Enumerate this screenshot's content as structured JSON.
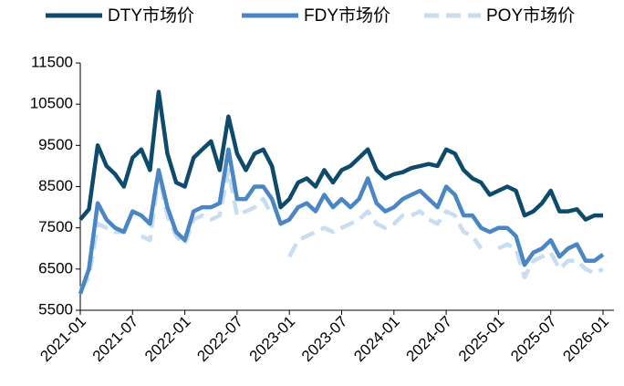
{
  "chart_data": {
    "type": "line",
    "x": [
      "2021-01",
      "2021-02",
      "2021-03",
      "2021-04",
      "2021-05",
      "2021-06",
      "2021-07",
      "2021-08",
      "2021-09",
      "2021-10",
      "2021-11",
      "2021-12",
      "2022-01",
      "2022-02",
      "2022-03",
      "2022-04",
      "2022-05",
      "2022-06",
      "2022-07",
      "2022-08",
      "2022-09",
      "2022-10",
      "2022-11",
      "2022-12",
      "2023-01",
      "2023-02",
      "2023-03",
      "2023-04",
      "2023-05",
      "2023-06",
      "2023-07",
      "2023-08",
      "2023-09",
      "2023-10",
      "2023-11",
      "2023-12",
      "2024-01",
      "2024-02",
      "2024-03",
      "2024-04",
      "2024-05",
      "2024-06",
      "2024-07",
      "2024-08",
      "2024-09",
      "2024-10",
      "2024-11",
      "2024-12",
      "2025-01",
      "2025-02",
      "2025-03",
      "2025-04",
      "2025-05",
      "2025-06",
      "2025-07",
      "2025-08",
      "2025-09",
      "2025-10",
      "2025-11",
      "2025-12",
      "2026-01"
    ],
    "series": [
      {
        "name": "DTY市场价",
        "color": "#0d4a6b",
        "dash": false,
        "values": [
          7700,
          7950,
          9500,
          9000,
          8800,
          8500,
          9200,
          9400,
          8900,
          10800,
          9300,
          8600,
          8500,
          9200,
          9400,
          9600,
          8900,
          10200,
          9300,
          8900,
          9300,
          9400,
          9000,
          8000,
          8200,
          8600,
          8700,
          8500,
          8900,
          8600,
          8900,
          9000,
          9200,
          9400,
          8900,
          8700,
          8800,
          8850,
          8950,
          9000,
          9050,
          9000,
          9400,
          9300,
          8900,
          8700,
          8600,
          8300,
          8400,
          8500,
          8400,
          7800,
          7900,
          8100,
          8400,
          7900,
          7900,
          7950,
          7700,
          7800,
          7800
        ]
      },
      {
        "name": "FDY市场价",
        "color": "#4a86c4",
        "dash": false,
        "values": [
          5900,
          6500,
          8100,
          7700,
          7500,
          7400,
          7900,
          7800,
          7600,
          8900,
          8000,
          7400,
          7200,
          7900,
          8000,
          8000,
          8100,
          9400,
          8200,
          8200,
          8500,
          8500,
          8200,
          7600,
          7700,
          8000,
          8100,
          7900,
          8300,
          8000,
          8200,
          8000,
          8200,
          8700,
          8100,
          7900,
          8000,
          8200,
          8300,
          8400,
          8200,
          8000,
          8500,
          8300,
          7800,
          7800,
          7500,
          7400,
          7500,
          7500,
          7300,
          6600,
          6900,
          7000,
          7200,
          6800,
          7000,
          7100,
          6700,
          6700,
          6850
        ]
      },
      {
        "name": "POY市场价",
        "color": "#c8ddf0",
        "dash": true,
        "values": [
          6000,
          6300,
          7600,
          7500,
          7400,
          7400,
          null,
          7300,
          7200,
          8800,
          7800,
          7300,
          7100,
          7700,
          7800,
          7700,
          7800,
          8900,
          7800,
          7900,
          8000,
          8200,
          7800,
          null,
          6800,
          7200,
          7300,
          7400,
          7500,
          7400,
          7500,
          7600,
          7700,
          7900,
          7600,
          7500,
          7600,
          7800,
          7800,
          7900,
          7700,
          7600,
          7900,
          7800,
          7400,
          7300,
          7000,
          null,
          7000,
          7100,
          7000,
          6300,
          6700,
          6800,
          6900,
          6500,
          6700,
          6700,
          6500,
          6400,
          6500
        ]
      }
    ],
    "ylim": [
      5500,
      11500
    ],
    "yticks": [
      5500,
      6500,
      7500,
      8500,
      9500,
      10500,
      11500
    ],
    "xticks": [
      "2021-01",
      "2021-07",
      "2022-01",
      "2022-07",
      "2023-01",
      "2023-07",
      "2024-01",
      "2024-07",
      "2025-01",
      "2025-07",
      "2026-01"
    ],
    "legend": "top"
  }
}
